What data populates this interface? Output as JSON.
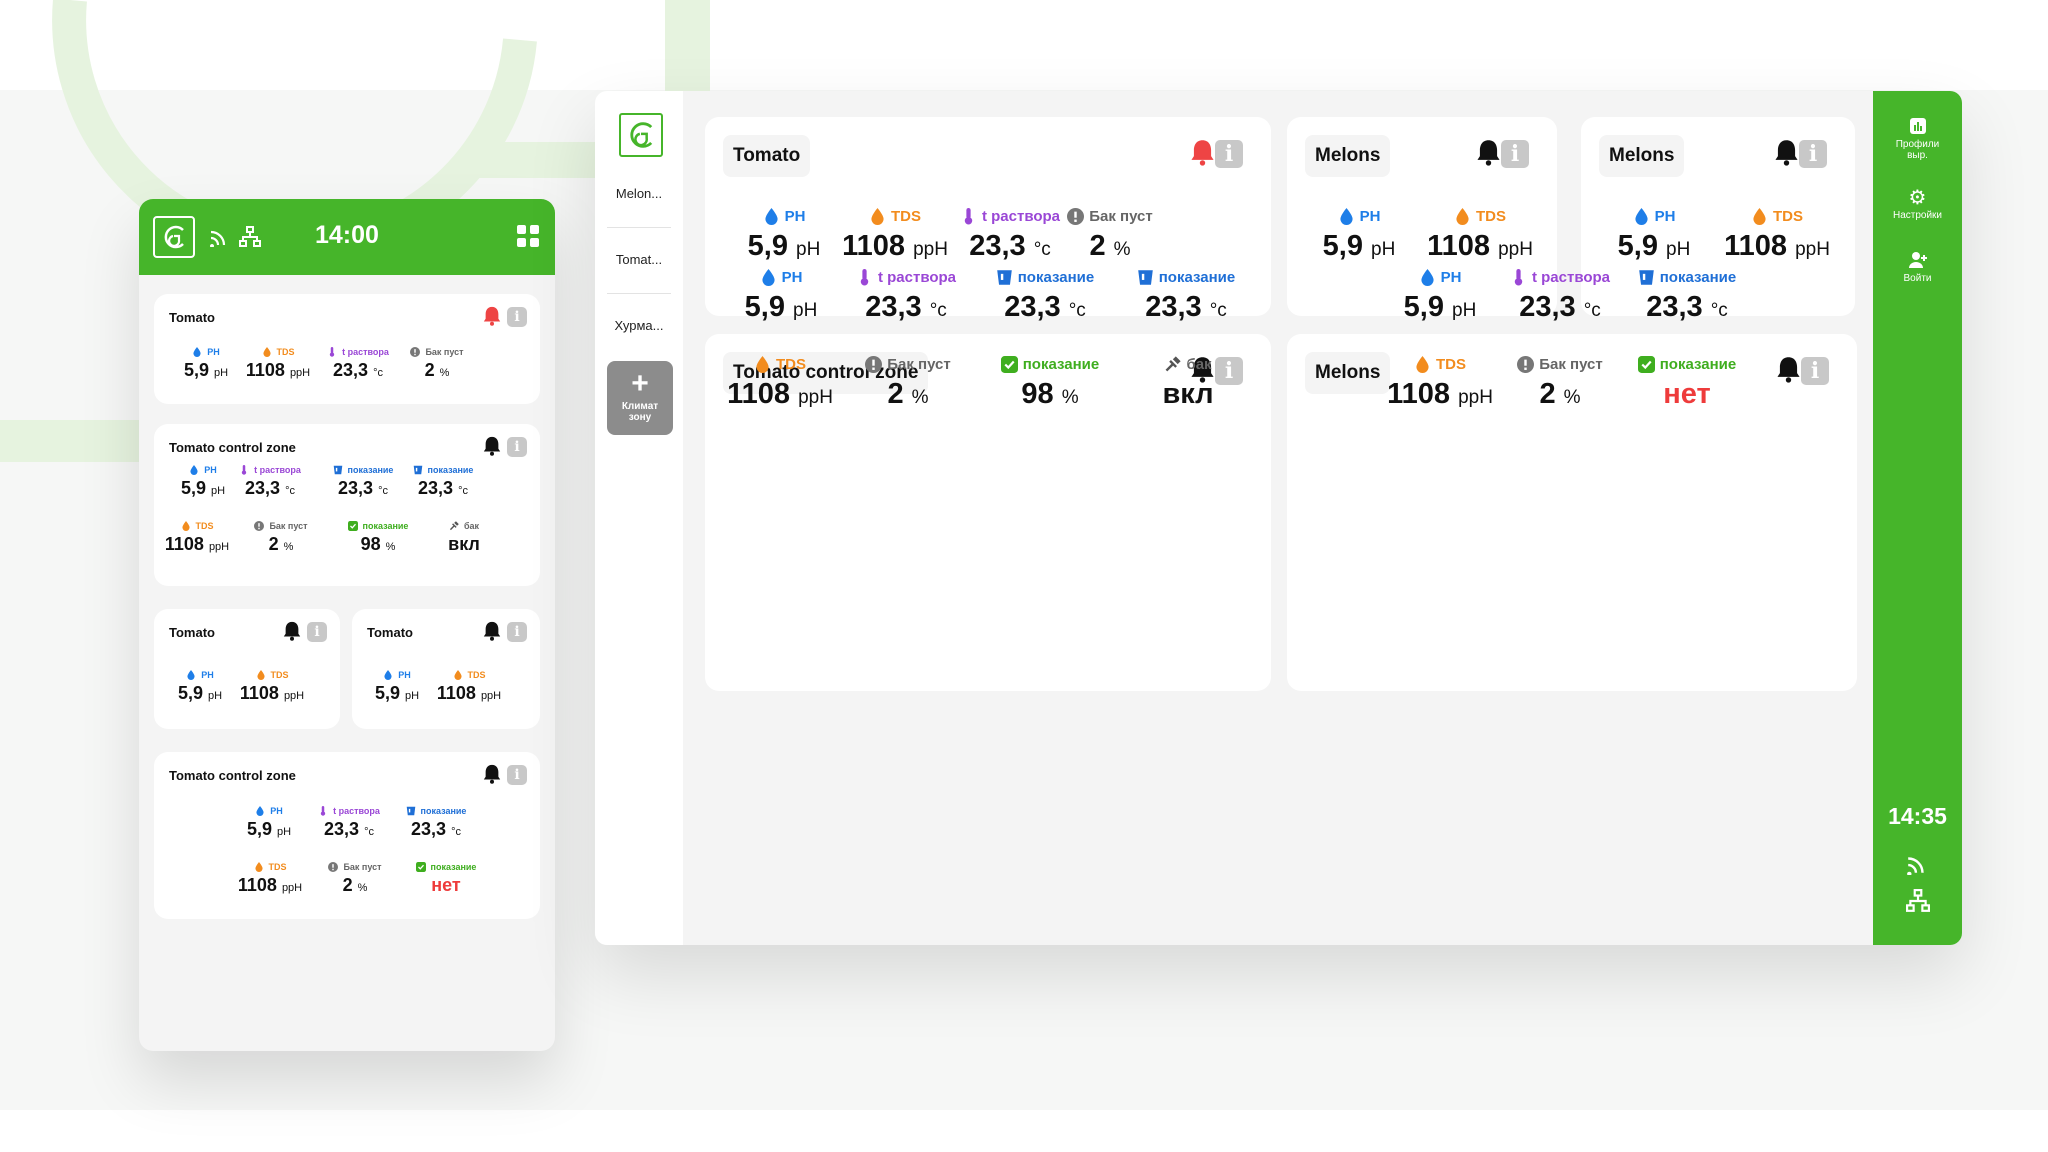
{
  "phone": {
    "time": "14:00",
    "cards": [
      {
        "title": "Tomato",
        "metrics": [
          {
            "label": "PH",
            "value": "5,9",
            "unit": "pH"
          },
          {
            "label": "TDS",
            "value": "1108",
            "unit": "ppH"
          },
          {
            "label": "t раствора",
            "value": "23,3",
            "unit": "°c"
          },
          {
            "label": "Бак пуст",
            "value": "2",
            "unit": "%"
          }
        ]
      },
      {
        "title": "Tomato control zone",
        "metrics": [
          {
            "label": "PH",
            "value": "5,9",
            "unit": "pH"
          },
          {
            "label": "t раствора",
            "value": "23,3",
            "unit": "°c"
          },
          {
            "label": "показание",
            "value": "23,3",
            "unit": "°c"
          },
          {
            "label": "показание",
            "value": "23,3",
            "unit": "°c"
          },
          {
            "label": "TDS",
            "value": "1108",
            "unit": "ppH"
          },
          {
            "label": "Бак пуст",
            "value": "2",
            "unit": "%"
          },
          {
            "label": "показание",
            "value": "98",
            "unit": "%"
          },
          {
            "label": "бак",
            "value": "вкл",
            "unit": ""
          }
        ]
      },
      {
        "title": "Tomato",
        "metrics": [
          {
            "label": "PH",
            "value": "5,9",
            "unit": "pH"
          },
          {
            "label": "TDS",
            "value": "1108",
            "unit": "ppH"
          }
        ]
      },
      {
        "title": "Tomato",
        "metrics": [
          {
            "label": "PH",
            "value": "5,9",
            "unit": "pH"
          },
          {
            "label": "TDS",
            "value": "1108",
            "unit": "ppH"
          }
        ]
      },
      {
        "title": "Tomato control zone",
        "metrics": [
          {
            "label": "PH",
            "value": "5,9",
            "unit": "pH"
          },
          {
            "label": "t раствора",
            "value": "23,3",
            "unit": "°c"
          },
          {
            "label": "показание",
            "value": "23,3",
            "unit": "°c"
          },
          {
            "label": "TDS",
            "value": "1108",
            "unit": "ppH"
          },
          {
            "label": "Бак пуст",
            "value": "2",
            "unit": "%"
          },
          {
            "label": "показание",
            "value": "нет",
            "unit": ""
          }
        ]
      }
    ]
  },
  "tablet": {
    "rail": {
      "items": [
        "Melon...",
        "Tomat...",
        "Хурма..."
      ],
      "add_label": "Климат зону"
    },
    "right_bar": {
      "profiles": "Профили выр.",
      "settings": "Настройки",
      "login": "Войти",
      "time": "14:35"
    },
    "cards": [
      {
        "title": "Tomato",
        "metrics": [
          {
            "label": "PH",
            "value": "5,9",
            "unit": "pH"
          },
          {
            "label": "TDS",
            "value": "1108",
            "unit": "ppH"
          },
          {
            "label": "t раствора",
            "value": "23,3",
            "unit": "°c"
          },
          {
            "label": "Бак пуст",
            "value": "2",
            "unit": "%"
          }
        ]
      },
      {
        "title": "Melons",
        "metrics": [
          {
            "label": "PH",
            "value": "5,9",
            "unit": "pH"
          },
          {
            "label": "TDS",
            "value": "1108",
            "unit": "ppH"
          }
        ]
      },
      {
        "title": "Melons",
        "metrics": [
          {
            "label": "PH",
            "value": "5,9",
            "unit": "pH"
          },
          {
            "label": "TDS",
            "value": "1108",
            "unit": "ppH"
          }
        ]
      },
      {
        "title": "Tomato control zone",
        "metrics": [
          {
            "label": "PH",
            "value": "5,9",
            "unit": "pH"
          },
          {
            "label": "t раствора",
            "value": "23,3",
            "unit": "°c"
          },
          {
            "label": "показание",
            "value": "23,3",
            "unit": "°c"
          },
          {
            "label": "показание",
            "value": "23,3",
            "unit": "°c"
          },
          {
            "label": "TDS",
            "value": "1108",
            "unit": "ppH"
          },
          {
            "label": "Бак пуст",
            "value": "2",
            "unit": "%"
          },
          {
            "label": "показание",
            "value": "98",
            "unit": "%"
          },
          {
            "label": "бак",
            "value": "вкл",
            "unit": ""
          }
        ]
      },
      {
        "title": "Melons",
        "metrics": [
          {
            "label": "PH",
            "value": "5,9",
            "unit": "pH"
          },
          {
            "label": "t раствора",
            "value": "23,3",
            "unit": "°c"
          },
          {
            "label": "показание",
            "value": "23,3",
            "unit": "°c"
          },
          {
            "label": "TDS",
            "value": "1108",
            "unit": "ppH"
          },
          {
            "label": "Бак пуст",
            "value": "2",
            "unit": "%"
          },
          {
            "label": "показание",
            "value": "нет",
            "unit": ""
          }
        ]
      }
    ]
  },
  "colors": {
    "accent": "#46b52a",
    "alert": "#ee3b3b",
    "ph": "#1e7ee8",
    "tds": "#f28c1e",
    "temp": "#9a47d6",
    "reading": "#1f6fd6"
  }
}
